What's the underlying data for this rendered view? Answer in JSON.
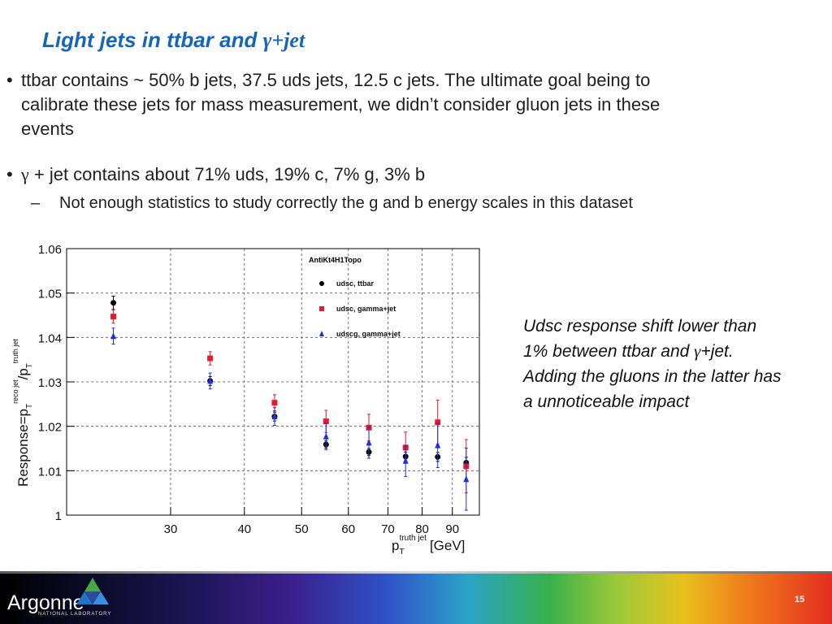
{
  "slide": {
    "title_main": "Light jets in ttbar and ",
    "title_greek": "γ+jet",
    "bullet1": "ttbar contains ~ 50% b jets, 37.5 uds jets, 12.5 c jets. The ultimate goal being to calibrate these jets for mass measurement, we didn’t consider gluon jets in these events",
    "bullet2_greek": "γ",
    "bullet2": "+ jet contains about 71% uds, 19% c, 7% g, 3% b",
    "sub_bullet": "Not enough statistics to study correctly the g and b energy scales in this dataset",
    "bullet_symbol": "•",
    "dash_symbol": "–",
    "note_part1": "Udsc response shift lower than 1% between ttbar and ",
    "note_greek": "γ",
    "note_part2": "+jet. Adding the gluons in the latter has a unnoticeable impact"
  },
  "footer": {
    "logo_text": "Argonne",
    "logo_subtext": "NATIONAL LABORATORY",
    "page_number": "15"
  },
  "chart_data": {
    "type": "scatter",
    "title": "AntiKt4H1Topo",
    "xlabel": "p_T^truth jet [GeV]",
    "ylabel": "Response=p_T^reco jet/p_T^truth jet",
    "x_scale": "log",
    "xlim": [
      20,
      100
    ],
    "ylim": [
      1.0,
      1.06
    ],
    "x_ticks": [
      30,
      40,
      50,
      60,
      70,
      80,
      90
    ],
    "y_ticks": [
      1,
      1.01,
      1.02,
      1.03,
      1.04,
      1.05,
      1.06
    ],
    "y_tick_labels": [
      "1",
      "1.01",
      "1.02",
      "1.03",
      "1.04",
      "1.05",
      "1.06"
    ],
    "grid": true,
    "legend_placement": "top-right",
    "series": [
      {
        "name": "udsc, ttbar",
        "marker": "circle",
        "color": "#000000",
        "x": [
          24,
          35,
          45,
          55,
          65,
          75,
          85,
          95
        ],
        "y": [
          1.0478,
          1.0302,
          1.0222,
          1.0159,
          1.0142,
          1.0132,
          1.0131,
          1.0118
        ],
        "err": [
          0.0015,
          0.001,
          0.001,
          0.0008,
          0.0008,
          0.001,
          0.001,
          0.0012
        ]
      },
      {
        "name": "udsc, gamma+jet",
        "marker": "square",
        "color": "#e8192a",
        "x": [
          24,
          35,
          45,
          55,
          65,
          75,
          85,
          95
        ],
        "y": [
          1.0447,
          1.0353,
          1.0253,
          1.0211,
          1.0197,
          1.0152,
          1.0209,
          1.011
        ],
        "err": [
          0.0015,
          0.0015,
          0.0018,
          0.0025,
          0.003,
          0.0035,
          0.005,
          0.006
        ]
      },
      {
        "name": "udscg, gamma+jet",
        "marker": "triangle",
        "color": "#1f2fd8",
        "x": [
          24,
          35,
          45,
          55,
          65,
          75,
          85,
          95
        ],
        "y": [
          1.0403,
          1.0302,
          1.0222,
          1.0177,
          1.0163,
          1.0122,
          1.0157,
          1.0081
        ],
        "err": [
          0.0018,
          0.0018,
          0.002,
          0.003,
          0.0035,
          0.0035,
          0.005,
          0.007
        ]
      }
    ]
  }
}
